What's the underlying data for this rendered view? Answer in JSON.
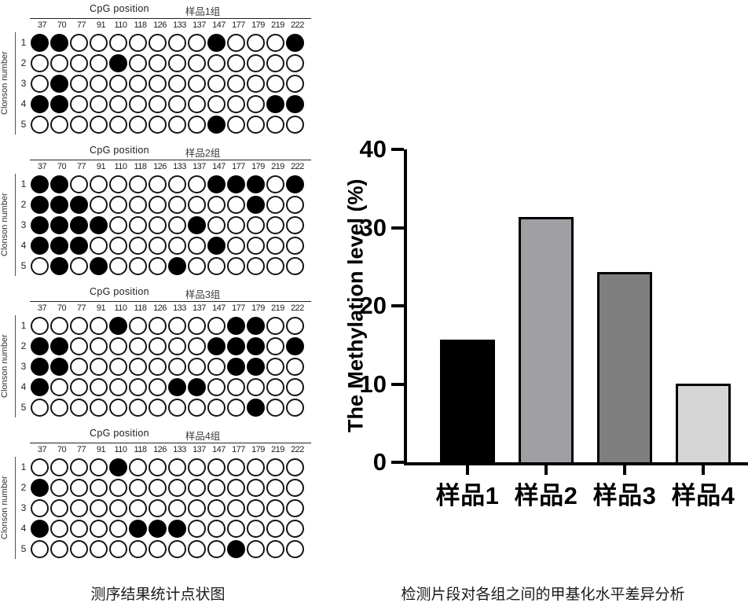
{
  "page": {
    "left_caption": "测序结果统计点状图",
    "right_caption": "检测片段对各组之间的甲基化水平差异分析"
  },
  "dot_plots": {
    "header_label": "CpG position",
    "y_axis_label": "Clonson number",
    "cpg_positions": [
      "37",
      "70",
      "77",
      "91",
      "110",
      "118",
      "126",
      "133",
      "137",
      "147",
      "177",
      "179",
      "219",
      "222"
    ],
    "row_labels": [
      "1",
      "2",
      "3",
      "4",
      "5"
    ],
    "groups": [
      {
        "title": "样品1组",
        "rows": [
          [
            1,
            1,
            0,
            0,
            0,
            0,
            0,
            0,
            0,
            1,
            0,
            0,
            0,
            1
          ],
          [
            0,
            0,
            0,
            0,
            1,
            0,
            0,
            0,
            0,
            0,
            0,
            0,
            0,
            0
          ],
          [
            0,
            1,
            0,
            0,
            0,
            0,
            0,
            0,
            0,
            0,
            0,
            0,
            0,
            0
          ],
          [
            1,
            1,
            0,
            0,
            0,
            0,
            0,
            0,
            0,
            0,
            0,
            0,
            1,
            1
          ],
          [
            0,
            0,
            0,
            0,
            0,
            0,
            0,
            0,
            0,
            1,
            0,
            0,
            0,
            0
          ]
        ]
      },
      {
        "title": "样品2组",
        "rows": [
          [
            1,
            1,
            0,
            0,
            0,
            0,
            0,
            0,
            0,
            1,
            1,
            1,
            0,
            1
          ],
          [
            1,
            1,
            1,
            0,
            0,
            0,
            0,
            0,
            0,
            0,
            0,
            1,
            0,
            0
          ],
          [
            1,
            1,
            1,
            1,
            0,
            0,
            0,
            0,
            1,
            0,
            0,
            0,
            0,
            0
          ],
          [
            1,
            1,
            1,
            0,
            0,
            0,
            0,
            0,
            0,
            1,
            0,
            0,
            0,
            0
          ],
          [
            0,
            1,
            0,
            1,
            0,
            0,
            0,
            1,
            0,
            0,
            0,
            0,
            0,
            0
          ]
        ]
      },
      {
        "title": "样品3组",
        "rows": [
          [
            0,
            0,
            0,
            0,
            1,
            0,
            0,
            0,
            0,
            0,
            1,
            1,
            0,
            0
          ],
          [
            1,
            1,
            0,
            0,
            0,
            0,
            0,
            0,
            0,
            1,
            1,
            1,
            0,
            1
          ],
          [
            1,
            1,
            0,
            0,
            0,
            0,
            0,
            0,
            0,
            0,
            1,
            1,
            0,
            0
          ],
          [
            1,
            0,
            0,
            0,
            0,
            0,
            0,
            1,
            1,
            0,
            0,
            0,
            0,
            0
          ],
          [
            0,
            0,
            0,
            0,
            0,
            0,
            0,
            0,
            0,
            0,
            0,
            1,
            0,
            0
          ]
        ]
      },
      {
        "title": "样品4组",
        "rows": [
          [
            0,
            0,
            0,
            0,
            1,
            0,
            0,
            0,
            0,
            0,
            0,
            0,
            0,
            0
          ],
          [
            1,
            0,
            0,
            0,
            0,
            0,
            0,
            0,
            0,
            0,
            0,
            0,
            0,
            0
          ],
          [
            0,
            0,
            0,
            0,
            0,
            0,
            0,
            0,
            0,
            0,
            0,
            0,
            0,
            0
          ],
          [
            1,
            0,
            0,
            0,
            0,
            1,
            1,
            1,
            0,
            0,
            0,
            0,
            0,
            0
          ],
          [
            0,
            0,
            0,
            0,
            0,
            0,
            0,
            0,
            0,
            0,
            1,
            0,
            0,
            0
          ]
        ]
      }
    ]
  },
  "chart_data": {
    "type": "bar",
    "title": "",
    "categories": [
      "样品1",
      "样品2",
      "样品3",
      "样品4"
    ],
    "values": [
      15.7,
      31.4,
      24.3,
      10
    ],
    "xlabel": "",
    "ylabel": "The Methylation level (%)",
    "yticks": [
      0,
      10,
      20,
      30,
      40
    ],
    "ylim": [
      0,
      40
    ],
    "grid": false,
    "legend_position": "none",
    "bar_colors": [
      "#000000",
      "#a0a0a4",
      "#7f7f7f",
      "#d6d6d6"
    ],
    "axis_color": "#000000"
  }
}
